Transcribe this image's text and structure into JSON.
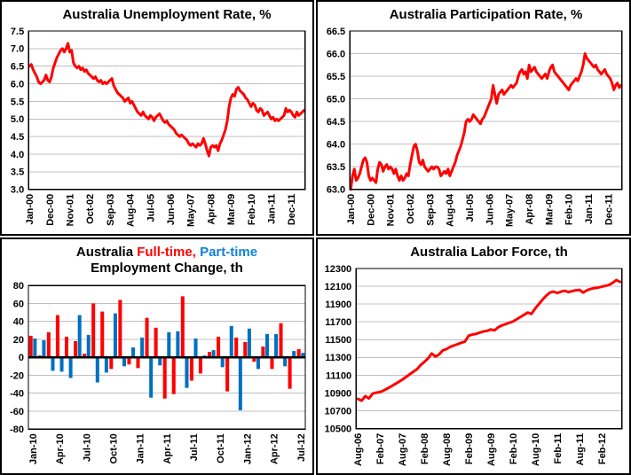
{
  "colors": {
    "series_red": "#ff0000",
    "part_time_blue": "#0070c0",
    "title_blue": "#0f82d8",
    "gridline": "#c0c0c0",
    "axis": "#000000",
    "background": "#ffffff",
    "text": "#000000"
  },
  "chart_data": [
    {
      "id": "unemployment-rate",
      "type": "line",
      "title": "Australia Unemployment Rate, %",
      "line_color": "#ff0000",
      "ylim": [
        3.0,
        7.5
      ],
      "ystep": 0.5,
      "y_decimals": 1,
      "x_start": "Jan-00",
      "x_end": "Jul-12",
      "x_tick_interval": 11,
      "x_tick_labels": [
        "Jan-00",
        "Dec-00",
        "Nov-01",
        "Oct-02",
        "Sep-03",
        "Aug-04",
        "Jul-05",
        "Jun-06",
        "May-07",
        "Apr-08",
        "Mar-09",
        "Feb-10",
        "Jan-11",
        "Dec-11"
      ],
      "values": [
        6.5,
        6.55,
        6.4,
        6.3,
        6.2,
        6.05,
        6.0,
        6.05,
        6.1,
        6.25,
        6.1,
        6.05,
        6.2,
        6.45,
        6.6,
        6.75,
        6.85,
        6.95,
        7.0,
        6.9,
        7.0,
        7.15,
        6.9,
        6.95,
        6.6,
        6.5,
        6.45,
        6.5,
        6.4,
        6.45,
        6.35,
        6.4,
        6.3,
        6.25,
        6.2,
        6.15,
        6.2,
        6.1,
        6.05,
        6.1,
        6.0,
        6.05,
        6.0,
        6.05,
        6.1,
        6.15,
        5.95,
        5.85,
        5.75,
        5.7,
        5.65,
        5.6,
        5.5,
        5.55,
        5.6,
        5.45,
        5.5,
        5.4,
        5.3,
        5.2,
        5.15,
        5.1,
        5.2,
        5.1,
        5.05,
        5.0,
        5.1,
        5.05,
        4.95,
        5.05,
        5.1,
        5.15,
        5.05,
        4.95,
        4.9,
        4.95,
        4.85,
        4.8,
        4.75,
        4.7,
        4.6,
        4.55,
        4.5,
        4.55,
        4.5,
        4.45,
        4.4,
        4.3,
        4.25,
        4.3,
        4.25,
        4.2,
        4.3,
        4.25,
        4.3,
        4.45,
        4.3,
        4.1,
        3.95,
        4.2,
        4.25,
        4.2,
        4.25,
        4.1,
        4.3,
        4.4,
        4.55,
        4.7,
        4.95,
        5.35,
        5.6,
        5.7,
        5.65,
        5.85,
        5.9,
        5.8,
        5.75,
        5.7,
        5.6,
        5.55,
        5.45,
        5.35,
        5.45,
        5.4,
        5.25,
        5.2,
        5.3,
        5.25,
        5.1,
        5.15,
        5.2,
        5.1,
        5.0,
        5.05,
        4.95,
        5.0,
        4.95,
        5.0,
        5.05,
        5.1,
        5.3,
        5.2,
        5.25,
        5.2,
        5.1,
        5.05,
        5.2,
        5.1,
        5.15,
        5.2,
        5.25
      ]
    },
    {
      "id": "participation-rate",
      "type": "line",
      "title": "Australia Participation Rate, %",
      "line_color": "#ff0000",
      "ylim": [
        63.0,
        66.5
      ],
      "ystep": 0.5,
      "y_decimals": 1,
      "x_start": "Jan-00",
      "x_end": "Jul-12",
      "x_tick_interval": 11,
      "x_tick_labels": [
        "Jan-00",
        "Dec-00",
        "Nov-01",
        "Oct-02",
        "Sep-03",
        "Aug-04",
        "Jul-05",
        "Jun-06",
        "May-07",
        "Apr-08",
        "Mar-09",
        "Feb-10",
        "Jan-11",
        "Dec-11"
      ],
      "values": [
        63.0,
        63.3,
        63.45,
        63.2,
        63.25,
        63.35,
        63.5,
        63.65,
        63.7,
        63.6,
        63.3,
        63.2,
        63.25,
        63.2,
        63.15,
        63.45,
        63.6,
        63.55,
        63.4,
        63.5,
        63.55,
        63.45,
        63.5,
        63.45,
        63.35,
        63.45,
        63.3,
        63.2,
        63.3,
        63.2,
        63.25,
        63.35,
        63.3,
        63.55,
        63.75,
        63.95,
        64.0,
        63.85,
        63.6,
        63.55,
        63.65,
        63.5,
        63.45,
        63.4,
        63.45,
        63.5,
        63.45,
        63.5,
        63.5,
        63.45,
        63.3,
        63.35,
        63.4,
        63.35,
        63.45,
        63.3,
        63.4,
        63.5,
        63.6,
        63.75,
        63.85,
        63.95,
        64.1,
        64.25,
        64.5,
        64.55,
        64.5,
        64.55,
        64.65,
        64.6,
        64.55,
        64.5,
        64.45,
        64.55,
        64.6,
        64.7,
        64.8,
        64.9,
        65.0,
        65.3,
        65.1,
        64.9,
        65.1,
        65.15,
        65.2,
        65.1,
        65.15,
        65.2,
        65.25,
        65.3,
        65.25,
        65.3,
        65.35,
        65.5,
        65.6,
        65.65,
        65.55,
        65.6,
        65.45,
        65.75,
        65.6,
        65.65,
        65.7,
        65.6,
        65.55,
        65.5,
        65.45,
        65.5,
        65.55,
        65.45,
        65.6,
        65.7,
        65.75,
        65.6,
        65.55,
        65.5,
        65.45,
        65.4,
        65.35,
        65.3,
        65.25,
        65.2,
        65.3,
        65.35,
        65.4,
        65.45,
        65.4,
        65.5,
        65.6,
        65.75,
        66.0,
        65.9,
        65.85,
        65.8,
        65.75,
        65.7,
        65.75,
        65.65,
        65.6,
        65.55,
        65.6,
        65.65,
        65.55,
        65.5,
        65.45,
        65.35,
        65.2,
        65.3,
        65.35,
        65.25,
        65.3
      ]
    },
    {
      "id": "employment-change",
      "type": "bar",
      "title_segments": [
        {
          "text": "Australia ",
          "color": "#000000"
        },
        {
          "text": "Full-time,",
          "color": "#ff0000"
        },
        {
          "text": " ",
          "color": "#000000"
        },
        {
          "text": "Part-time",
          "color": "#0f82d8"
        }
      ],
      "title_line2": "Employment Change, th",
      "ylim": [
        -80,
        80
      ],
      "ystep": 20,
      "y_decimals": 0,
      "x_tick_interval": 3,
      "x_tick_labels": [
        "Jan-10",
        "Apr-10",
        "Jul-10",
        "Oct-10",
        "Jan-11",
        "Apr-11",
        "Jul-11",
        "Oct-11",
        "Jan-12",
        "Apr-12",
        "Jul-12"
      ],
      "categories": [
        "Jan-10",
        "Feb-10",
        "Mar-10",
        "Apr-10",
        "May-10",
        "Jun-10",
        "Jul-10",
        "Aug-10",
        "Sep-10",
        "Oct-10",
        "Nov-10",
        "Dec-10",
        "Jan-11",
        "Feb-11",
        "Mar-11",
        "Apr-11",
        "May-11",
        "Jun-11",
        "Jul-11",
        "Aug-11",
        "Sep-11",
        "Oct-11",
        "Nov-11",
        "Dec-11",
        "Jan-12",
        "Feb-12",
        "Mar-12",
        "Apr-12",
        "May-12",
        "Jun-12",
        "Jul-12"
      ],
      "series": [
        {
          "name": "Full-time",
          "color": "#ff0000",
          "values": [
            24,
            2,
            28,
            47,
            23,
            18,
            4,
            60,
            51,
            -13,
            64,
            -8,
            -12,
            44,
            33,
            -46,
            -41,
            68,
            -26,
            -18,
            6,
            23,
            -38,
            22,
            17,
            -5,
            12,
            -13,
            38,
            -35,
            9
          ]
        },
        {
          "name": "Part-time",
          "color": "#0070c0",
          "values": [
            21,
            19,
            -15,
            -16,
            -23,
            47,
            25,
            -28,
            -17,
            49,
            -10,
            11,
            22,
            -45,
            -9,
            28,
            29,
            -34,
            21,
            2,
            8,
            -11,
            35,
            -59,
            32,
            -13,
            26,
            26,
            -10,
            7,
            5
          ]
        }
      ]
    },
    {
      "id": "labor-force",
      "type": "line",
      "title": "Australia Labor Force, th",
      "line_color": "#ff0000",
      "ylim": [
        10500,
        12300
      ],
      "ystep": 200,
      "y_decimals": 0,
      "x_start": "Aug-06",
      "x_end": "Jul-12",
      "x_tick_interval": 6,
      "x_tick_labels": [
        "Aug-06",
        "Feb-07",
        "Aug-07",
        "Feb-08",
        "Aug-08",
        "Feb-09",
        "Aug-09",
        "Feb-10",
        "Aug-10",
        "Feb-11",
        "Aug-11",
        "Feb-12"
      ],
      "values": [
        10835,
        10815,
        10866,
        10840,
        10895,
        10905,
        10912,
        10930,
        10952,
        10975,
        11000,
        11025,
        11050,
        11080,
        11110,
        11140,
        11168,
        11215,
        11250,
        11290,
        11345,
        11310,
        11335,
        11380,
        11395,
        11420,
        11435,
        11450,
        11465,
        11480,
        11545,
        11558,
        11565,
        11580,
        11592,
        11600,
        11615,
        11605,
        11640,
        11660,
        11675,
        11690,
        11705,
        11730,
        11755,
        11780,
        11805,
        11790,
        11850,
        11900,
        11950,
        11995,
        12030,
        12040,
        12025,
        12040,
        12050,
        12035,
        12045,
        12055,
        12060,
        12030,
        12055,
        12070,
        12080,
        12085,
        12095,
        12105,
        12115,
        12140,
        12170,
        12150
      ]
    }
  ]
}
